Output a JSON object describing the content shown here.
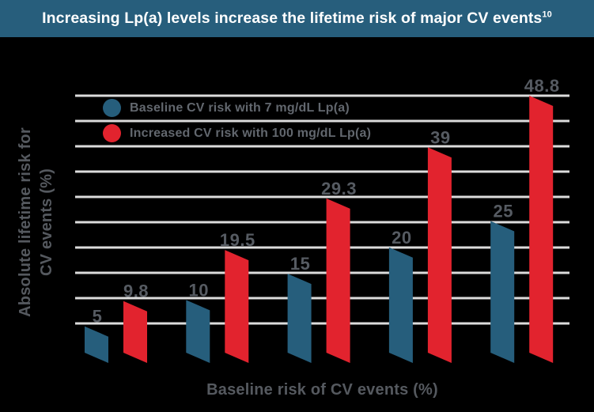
{
  "header": {
    "title_main": "Increasing Lp(a) levels increase the lifetime risk of major CV events",
    "title_superscript": "10"
  },
  "colors": {
    "header_bg": "#275e7c",
    "chart_bg": "#000000",
    "title_text": "#ffffff",
    "gridline": "#dcdcdc",
    "value_label": "#565b62",
    "axis_label": "#55595f",
    "legend_text": "#62676e",
    "baseline_series": "#265e7c",
    "increased_series": "#e2232e"
  },
  "chart_data": {
    "type": "bar",
    "title": "Increasing Lp(a) levels increase the lifetime risk of major CV events",
    "title_reference": "10",
    "xlabel": "Baseline risk of CV events (%)",
    "ylabel": "Absolute lifetime risk for CV events (%)",
    "ylabel_lines": [
      "Absolute lifetime risk for",
      "CV events (%)"
    ],
    "categories": [
      5,
      10,
      15,
      20,
      25
    ],
    "series": [
      {
        "name": "Baseline CV risk with 7 mg/dL Lp(a)",
        "color": "#265e7c",
        "values": [
          5,
          10,
          15,
          20,
          25
        ],
        "labels": [
          "5",
          "10",
          "15",
          "20",
          "25"
        ]
      },
      {
        "name": "Increased CV risk with 100 mg/dL Lp(a)",
        "color": "#e2232e",
        "values": [
          9.8,
          19.5,
          29.3,
          39,
          48.8
        ],
        "labels": [
          "9.8",
          "19.5",
          "29.3",
          "39",
          "48.8"
        ]
      }
    ],
    "ylim": [
      0,
      50
    ],
    "grid": {
      "visible": true,
      "line_count": 10,
      "color": "#dcdcdc"
    },
    "legend_position": "top-left",
    "bar_style": "skewed-parallelogram"
  }
}
